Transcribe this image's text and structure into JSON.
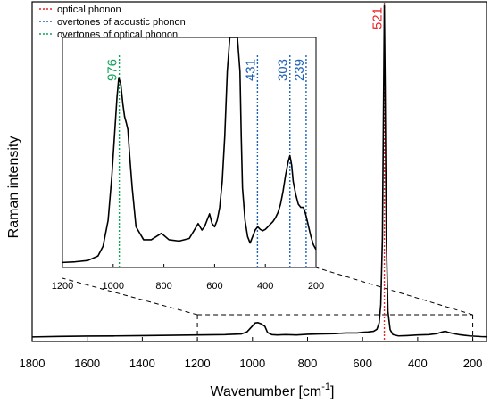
{
  "chart_data": {
    "type": "line",
    "xlabel": "Wavenumber [cm",
    "xlabel_sup": "-1",
    "xlabel_end": "]",
    "ylabel": "Raman intensity",
    "xlim": [
      1800,
      150
    ],
    "x_reversed": true,
    "xticks": [
      "1800",
      "1600",
      "1400",
      "1200",
      "1000",
      "800",
      "600",
      "400",
      "200"
    ],
    "legend": [
      {
        "label": "optical phonon",
        "color": "#e8252a"
      },
      {
        "label": "overtones of acoustic phonon",
        "color": "#1f62b5"
      },
      {
        "label": "overtones of optical phonon",
        "color": "#13a35a"
      }
    ],
    "legend_position": "top-left",
    "peaks": [
      {
        "label": "521",
        "x": 521,
        "color": "#e8252a",
        "where": "main"
      },
      {
        "label": "976",
        "x": 976,
        "color": "#13a35a",
        "where": "inset"
      },
      {
        "label": "431",
        "x": 431,
        "color": "#1f62b5",
        "where": "inset"
      },
      {
        "label": "303",
        "x": 303,
        "color": "#1f62b5",
        "where": "inset"
      },
      {
        "label": "239",
        "x": 239,
        "color": "#1f62b5",
        "where": "inset"
      }
    ],
    "zoom_window": {
      "xmin": 200,
      "xmax": 1200
    },
    "series": [
      {
        "x": [
          1800,
          1700,
          1600,
          1500,
          1400,
          1300,
          1200,
          1100,
          1040,
          1020,
          1000,
          990,
          980,
          970,
          955,
          945,
          930,
          910,
          880,
          840,
          800,
          760,
          700,
          660,
          620,
          600,
          580,
          560,
          548,
          540,
          534,
          528,
          524,
          521,
          518,
          514,
          508,
          500,
          490,
          470,
          440,
          420,
          400,
          360,
          330,
          310,
          300,
          290,
          270,
          250,
          230,
          210,
          190,
          170,
          150
        ],
        "y": [
          0.3,
          0.45,
          0.55,
          0.6,
          0.7,
          0.8,
          0.9,
          1.0,
          1.2,
          1.8,
          3.6,
          4.5,
          4.6,
          4.3,
          3.5,
          1.6,
          1.0,
          0.9,
          1.0,
          0.9,
          1.1,
          1.2,
          1.3,
          1.5,
          1.5,
          1.7,
          1.8,
          2.0,
          2.6,
          4.5,
          10,
          30,
          70,
          100,
          75,
          30,
          8,
          2.5,
          1.0,
          0.6,
          0.7,
          0.8,
          0.9,
          1.0,
          1.3,
          1.8,
          2.0,
          1.7,
          1.3,
          1.0,
          0.8,
          0.6,
          0.5,
          0.4,
          0.35
        ]
      }
    ],
    "inset_series": [
      {
        "x": [
          1200,
          1150,
          1100,
          1060,
          1040,
          1020,
          1005,
          995,
          985,
          978,
          970,
          962,
          955,
          948,
          942,
          935,
          925,
          910,
          880,
          850,
          830,
          810,
          780,
          740,
          700,
          680,
          665,
          650,
          640,
          630,
          620,
          610,
          600,
          590,
          580,
          570,
          560,
          550,
          540,
          530,
          520,
          510,
          500,
          495,
          490,
          480,
          470,
          460,
          450,
          440,
          430,
          420,
          410,
          400,
          390,
          380,
          370,
          360,
          350,
          340,
          330,
          320,
          310,
          303,
          296,
          290,
          280,
          270,
          260,
          250,
          245,
          240,
          235,
          228,
          220,
          210,
          200
        ],
        "y": [
          0.5,
          0.6,
          0.8,
          1.5,
          3.0,
          7.0,
          14.0,
          20.0,
          26.0,
          29.0,
          28.0,
          25.0,
          23.0,
          22.0,
          21.0,
          17.0,
          12.0,
          6.0,
          4.0,
          4.0,
          4.5,
          5.0,
          4.0,
          3.8,
          4.2,
          5.5,
          6.5,
          5.5,
          6.0,
          7.0,
          8.0,
          6.5,
          6.0,
          7.0,
          9.0,
          13.0,
          20.0,
          30.0,
          40.0,
          40.0,
          40.0,
          40.0,
          30.0,
          20.0,
          12.0,
          7.0,
          4.5,
          3.5,
          4.5,
          5.5,
          6.0,
          5.6,
          5.4,
          5.6,
          6.0,
          6.4,
          6.8,
          7.4,
          8.2,
          9.5,
          11.5,
          14.0,
          16.0,
          17.0,
          15.5,
          13.0,
          11.0,
          9.5,
          9.0,
          9.0,
          8.5,
          7.8,
          7.0,
          5.8,
          4.5,
          3.2,
          2.5
        ]
      }
    ]
  }
}
